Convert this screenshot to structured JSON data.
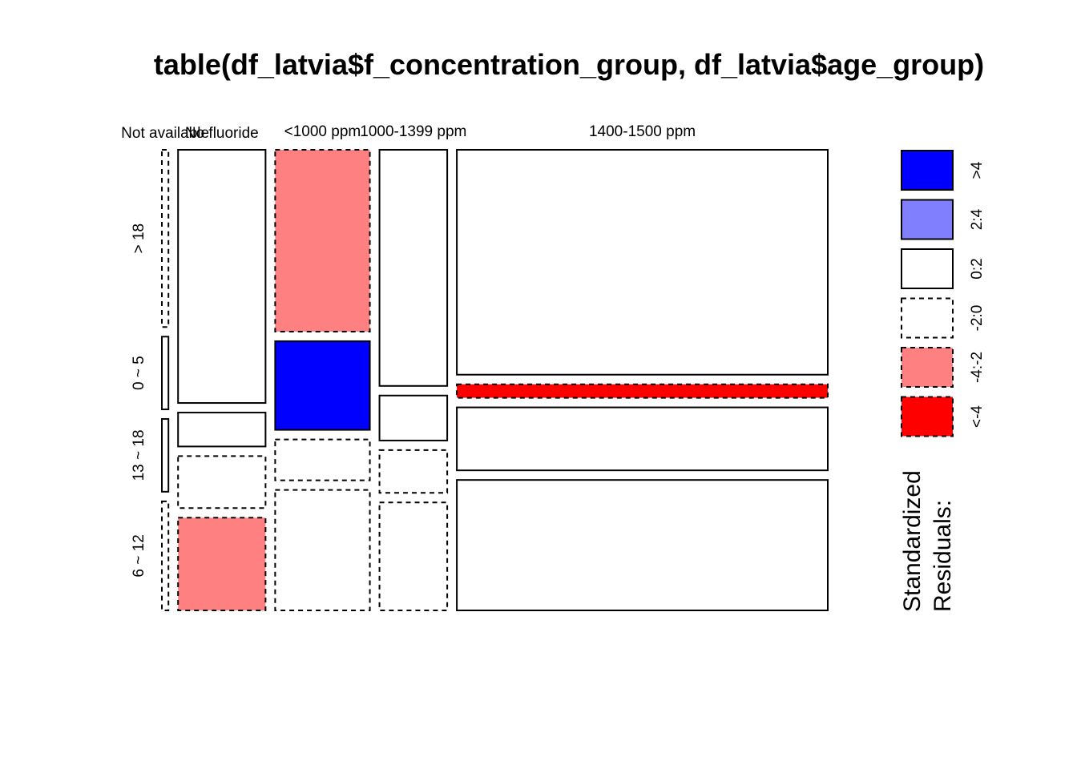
{
  "chart_data": {
    "type": "mosaic",
    "title": "table(df_latvia$f_concentration_group, df_latvia$age_group)",
    "columns": [
      "Not available",
      "No fluoride",
      "<1000 ppm",
      "1000-1399 ppm",
      "1400-1500 ppm"
    ],
    "rows": [
      "> 18",
      "0 ~ 5",
      "13 ~ 18",
      "6 ~ 12"
    ],
    "column_widths": [
      0.01,
      0.133,
      0.144,
      0.103,
      0.564
    ],
    "row_proportions": [
      [
        0.39,
        0.16,
        0.16,
        0.24
      ],
      [
        0.56,
        0.075,
        0.115,
        0.205
      ],
      [
        0.4,
        0.195,
        0.09,
        0.265
      ],
      [
        0.525,
        0.1,
        0.095,
        0.24
      ],
      [
        0.5,
        0.03,
        0.14,
        0.29
      ]
    ],
    "residual_class": [
      [
        "-2:0",
        "0:2",
        "0:2",
        "-2:0"
      ],
      [
        "0:2",
        "0:2",
        "-2:0",
        "-4:-2"
      ],
      [
        "-4:-2",
        ">4",
        "-2:0",
        "-2:0"
      ],
      [
        "0:2",
        "0:2",
        "-2:0",
        "-2:0"
      ],
      [
        "0:2",
        "<-4",
        "0:2",
        "0:2"
      ]
    ],
    "legend": {
      "title_line1": "Standardized",
      "title_line2": "Residuals:",
      "items": [
        {
          "label": ">4",
          "fill": "#0000ff",
          "dashed": false
        },
        {
          "label": "2:4",
          "fill": "#8080ff",
          "dashed": false
        },
        {
          "label": "0:2",
          "fill": "#ffffff",
          "dashed": false
        },
        {
          "label": "-2:0",
          "fill": "#ffffff",
          "dashed": true
        },
        {
          "label": "-4:-2",
          "fill": "#ff8080",
          "dashed": true
        },
        {
          "label": "<-4",
          "fill": "#ff0000",
          "dashed": true
        }
      ]
    }
  }
}
